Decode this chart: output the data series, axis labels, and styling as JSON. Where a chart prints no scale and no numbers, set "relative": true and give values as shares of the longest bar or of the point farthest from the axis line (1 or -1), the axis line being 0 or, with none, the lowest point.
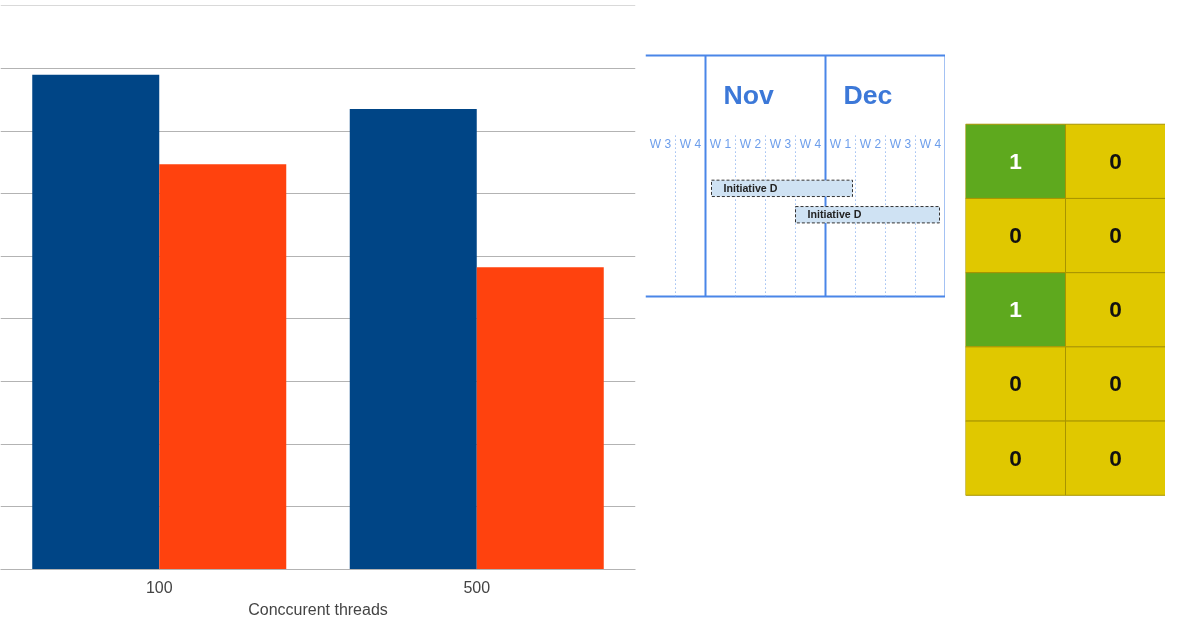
{
  "chart_data": [
    {
      "type": "bar",
      "relative": true,
      "categories": [
        "100",
        "500"
      ],
      "xlabel": "Conccurent threads",
      "grid": "y",
      "series": [
        {
          "color": "#004586",
          "values": [
            1,
            0.931
          ]
        },
        {
          "color": "#ff420e",
          "values": [
            0.819,
            0.611
          ]
        }
      ]
    },
    {
      "type": "other",
      "categories": [
        "W 3",
        "W 4",
        "W 1",
        "W 2",
        "W 3",
        "W 4",
        "W 1",
        "W 2",
        "W 3",
        "W 4"
      ],
      "annotations": [
        "Nov",
        "Dec",
        "Initiative D",
        "Initiative D"
      ]
    },
    {
      "type": "heatmap",
      "categories": [
        null,
        null
      ],
      "y_categories": [
        null,
        null,
        null,
        null,
        null
      ],
      "cells": [
        [
          1,
          0
        ],
        [
          0,
          0
        ],
        [
          1,
          0
        ],
        [
          0,
          0
        ],
        [
          0,
          0
        ]
      ],
      "data_labels": true,
      "colors": [
        "#e0c800",
        "#5ea91e"
      ]
    }
  ]
}
